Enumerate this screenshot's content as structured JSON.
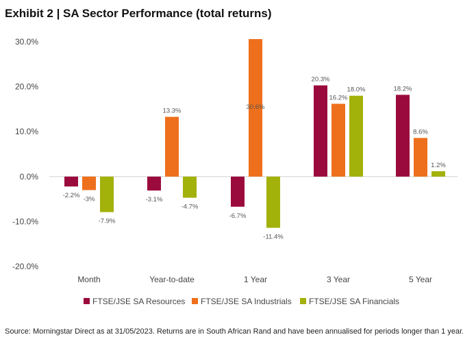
{
  "title": "Exhibit 2 | SA Sector Performance (total returns)",
  "source_note": "Source: Morningstar Direct as at 31/05/2023. Returns are in South African Rand and have been annualised for periods longer than 1 year.",
  "chart_data": {
    "type": "bar",
    "title": "Exhibit 2 | SA Sector Performance (total returns)",
    "xlabel": "",
    "ylabel": "",
    "categories": [
      "Month",
      "Year-to-date",
      "1 Year",
      "3 Year",
      "5 Year"
    ],
    "ylim": [
      -20,
      30
    ],
    "yticks": [
      30,
      20,
      10,
      0,
      -10,
      -20
    ],
    "ytick_labels": [
      "30.0%",
      "20.0%",
      "10.0%",
      "0.0%",
      "-10.0%",
      "-20.0%"
    ],
    "grid": false,
    "legend_position": "bottom",
    "series": [
      {
        "name": "FTSE/JSE SA Resources",
        "color": "#9b0a3c",
        "values": [
          -2.2,
          -3.1,
          -6.7,
          20.3,
          18.2
        ],
        "labels": [
          "-2.2%",
          "-3.1%",
          "-6.7%",
          "20.3%",
          "18.2%"
        ]
      },
      {
        "name": "FTSE/JSE SA Industrials",
        "color": "#ee6f1c",
        "values": [
          -3,
          13.3,
          30.6,
          16.2,
          8.6
        ],
        "labels": [
          "-3%",
          "13.3%",
          "30.6%",
          "16.2%",
          "8.6%"
        ]
      },
      {
        "name": "FTSE/JSE SA Financials",
        "color": "#a3b10b",
        "values": [
          -7.9,
          -4.7,
          -11.4,
          18.0,
          1.2
        ],
        "labels": [
          "-7.9%",
          "-4.7%",
          "-11.4%",
          "18.0%",
          "1.2%"
        ]
      }
    ]
  }
}
